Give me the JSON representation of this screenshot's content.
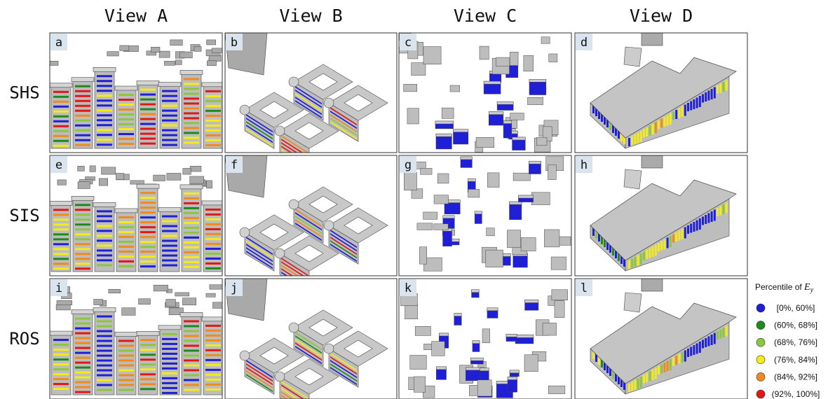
{
  "header": {
    "columns": [
      "View A",
      "View B",
      "View C",
      "View D"
    ]
  },
  "rows": [
    "SHS",
    "SIS",
    "ROS"
  ],
  "panels": [
    [
      "a",
      "b",
      "c",
      "d"
    ],
    [
      "e",
      "f",
      "g",
      "h"
    ],
    [
      "i",
      "j",
      "k",
      "l"
    ]
  ],
  "legend": {
    "title": "Percentile of",
    "symbol": "E",
    "subscript": "y",
    "entries": [
      {
        "label": "[0%, 60%]",
        "color": "#1f1fd6"
      },
      {
        "label": "(60%, 68%]",
        "color": "#1e8a1e"
      },
      {
        "label": "(68%, 76%]",
        "color": "#8cc63e"
      },
      {
        "label": "(76%, 84%]",
        "color": "#f5ea1a"
      },
      {
        "label": "(84%, 92%]",
        "color": "#f08a1c"
      },
      {
        "label": "(92%, 100%]",
        "color": "#e01818"
      }
    ]
  }
}
